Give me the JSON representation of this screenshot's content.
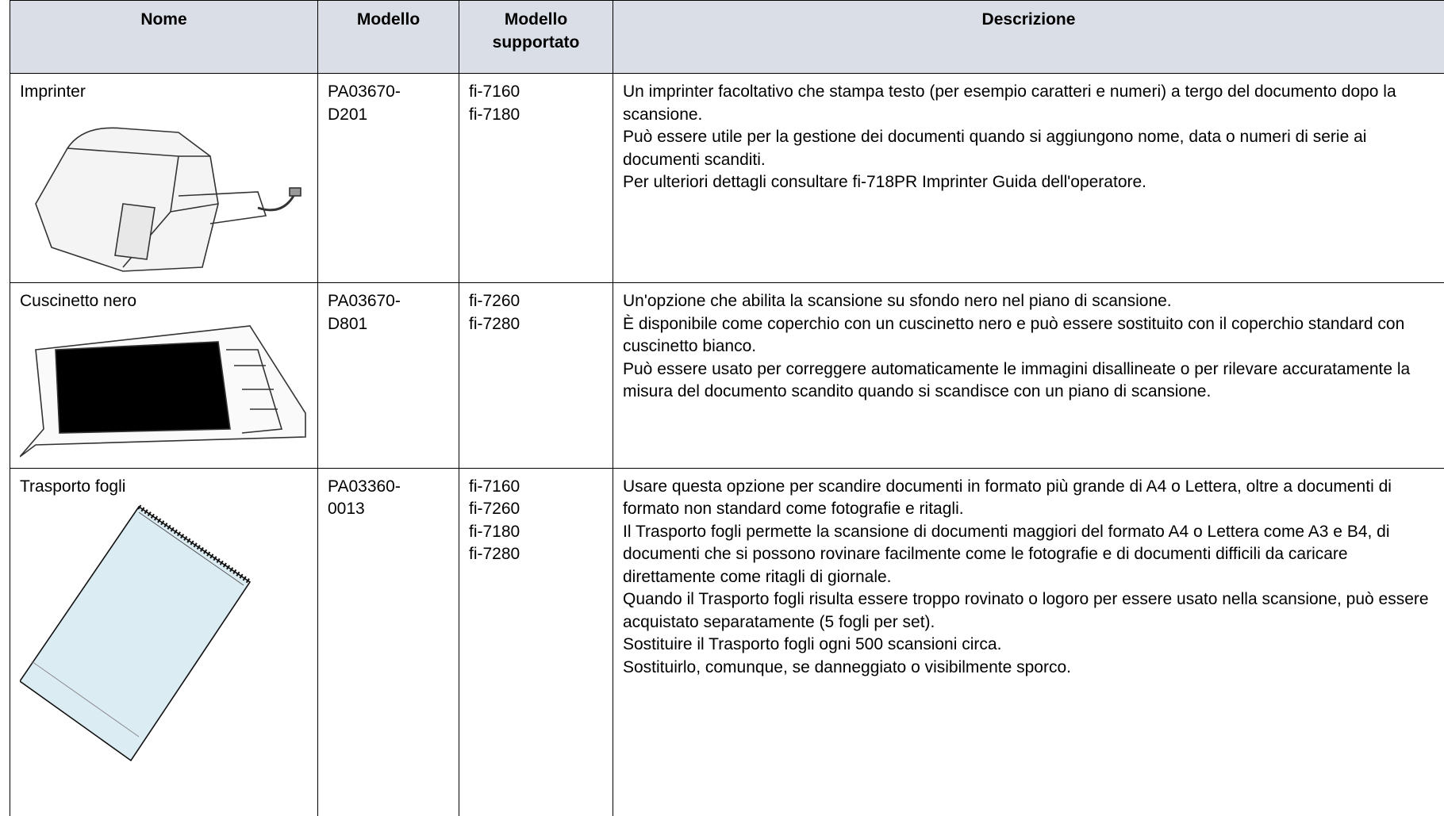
{
  "table": {
    "header": [
      "Nome",
      "Modello",
      "Modello supportato",
      "Descrizione"
    ],
    "rows": [
      {
        "name": "Imprinter",
        "model": [
          "PA03670-",
          "D201"
        ],
        "supported": [
          "fi-7160",
          "fi-7180"
        ],
        "description": [
          "Un imprinter facoltativo che stampa testo (per esempio caratteri e numeri) a tergo del documento dopo la scansione.",
          "Può essere utile per la gestione dei documenti quando si aggiungono nome, data o numeri di serie ai documenti scanditi.",
          "Per ulteriori dettagli consultare fi-718PR Imprinter Guida dell'operatore."
        ]
      },
      {
        "name": "Cuscinetto nero",
        "model": [
          "PA03670-",
          "D801"
        ],
        "supported": [
          "fi-7260",
          "fi-7280"
        ],
        "description": [
          "Un'opzione che abilita la scansione su sfondo nero nel piano di scansione.",
          "È disponibile come coperchio con un cuscinetto nero e può essere sostituito con il coperchio standard con cuscinetto bianco.",
          "Può essere usato per correggere automaticamente le immagini disallineate o per rilevare accuratamente la misura del documento scandito quando si scandisce con un piano di scansione."
        ]
      },
      {
        "name": "Trasporto fogli",
        "model": [
          "PA03360-",
          "0013"
        ],
        "supported": [
          "fi-7160",
          "fi-7260",
          "fi-7180",
          "fi-7280"
        ],
        "description": [
          "Usare questa opzione per scandire documenti in formato più grande di A4 o Lettera, oltre a documenti di formato non standard come fotografie e ritagli.",
          "Il Trasporto fogli permette la scansione di documenti maggiori del formato A4 o Lettera come A3 e B4, di documenti che si possono rovinare facilmente come le fotografie e di documenti difficili da caricare direttamente come ritagli di giornale.",
          "Quando il Trasporto fogli risulta essere troppo rovinato o logoro per essere usato nella scansione, può essere acquistato separatamente (5 fogli per set).",
          "Sostituire il Trasporto fogli ogni 500 scansioni circa.",
          "Sostituirlo, comunque, se danneggiato o visibilmente sporco."
        ]
      }
    ]
  }
}
